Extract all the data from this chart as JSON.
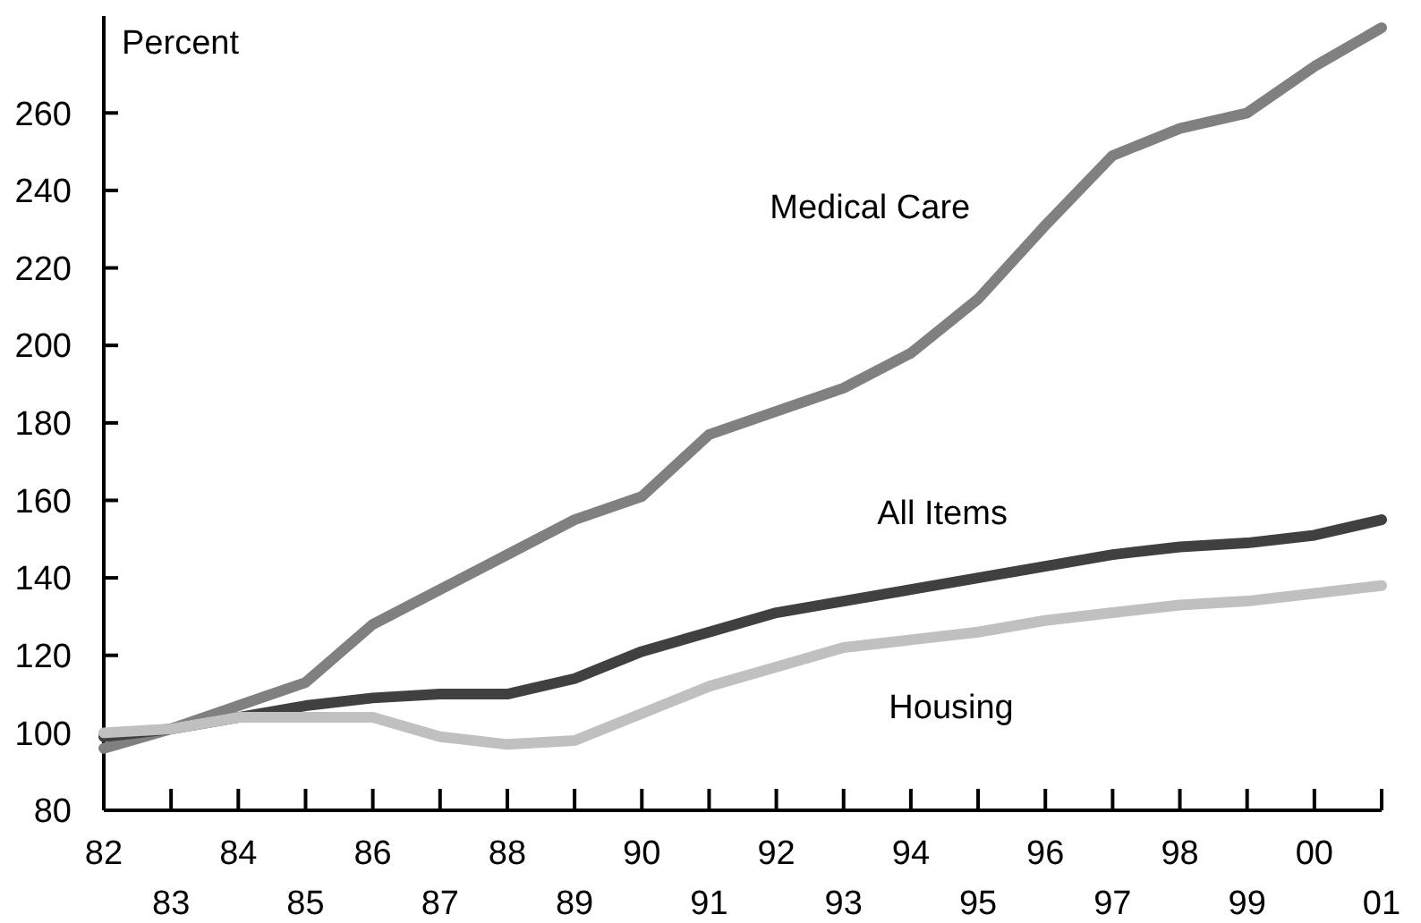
{
  "chart_data": {
    "type": "line",
    "ylabel": "Percent",
    "categories": [
      "82",
      "83",
      "84",
      "85",
      "86",
      "87",
      "88",
      "89",
      "90",
      "91",
      "92",
      "93",
      "94",
      "95",
      "96",
      "97",
      "98",
      "99",
      "00",
      "01"
    ],
    "series": [
      {
        "name": "Medical Care",
        "color": "#808080",
        "values": [
          96,
          101,
          107,
          113,
          128,
          137,
          146,
          155,
          161,
          177,
          183,
          189,
          198,
          212,
          231,
          249,
          256,
          260,
          272,
          282
        ]
      },
      {
        "name": "All Items",
        "color": "#404040",
        "values": [
          99,
          101,
          104,
          107,
          109,
          110,
          110,
          114,
          121,
          126,
          131,
          134,
          137,
          140,
          143,
          146,
          148,
          149,
          151,
          155
        ]
      },
      {
        "name": "Housing",
        "color": "#c0c0c0",
        "values": [
          100,
          101,
          104,
          104,
          104,
          99,
          97,
          98,
          105,
          112,
          117,
          122,
          124,
          126,
          129,
          131,
          133,
          134,
          136,
          138
        ]
      }
    ],
    "ylim": [
      80,
      285
    ],
    "yticks": [
      80,
      100,
      120,
      140,
      160,
      180,
      200,
      220,
      240,
      260
    ],
    "grid": false,
    "legend": false,
    "marker": "none",
    "line_style": "solid"
  }
}
